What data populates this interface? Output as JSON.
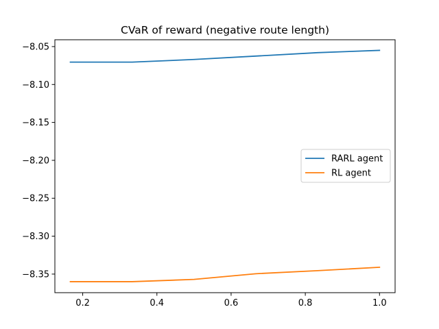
{
  "chart_data": {
    "type": "line",
    "title": "CVaR of reward (negative route length)",
    "xlabel": "",
    "ylabel": "",
    "x": [
      0.1667,
      0.3333,
      0.5,
      0.6667,
      0.8333,
      1.0
    ],
    "series": [
      {
        "name": "RARL agent",
        "color": "#1f77b4",
        "values": [
          -8.0705,
          -8.0705,
          -8.067,
          -8.0625,
          -8.058,
          -8.055
        ]
      },
      {
        "name": "RL agent",
        "color": "#ff7f0e",
        "values": [
          -8.36,
          -8.36,
          -8.357,
          -8.3495,
          -8.3455,
          -8.341
        ]
      }
    ],
    "xlim": [
      0.125,
      1.042
    ],
    "ylim": [
      -8.3745,
      -8.041
    ],
    "xticks": [
      0.2,
      0.4,
      0.6,
      0.8,
      1.0
    ],
    "xtick_labels": [
      "0.2",
      "0.4",
      "0.6",
      "0.8",
      "1.0"
    ],
    "yticks": [
      -8.05,
      -8.1,
      -8.15,
      -8.2,
      -8.25,
      -8.3,
      -8.35
    ],
    "ytick_labels": [
      "−8.05",
      "−8.10",
      "−8.15",
      "−8.20",
      "−8.25",
      "−8.30",
      "−8.35"
    ],
    "grid": false,
    "legend_position": "center-right"
  }
}
